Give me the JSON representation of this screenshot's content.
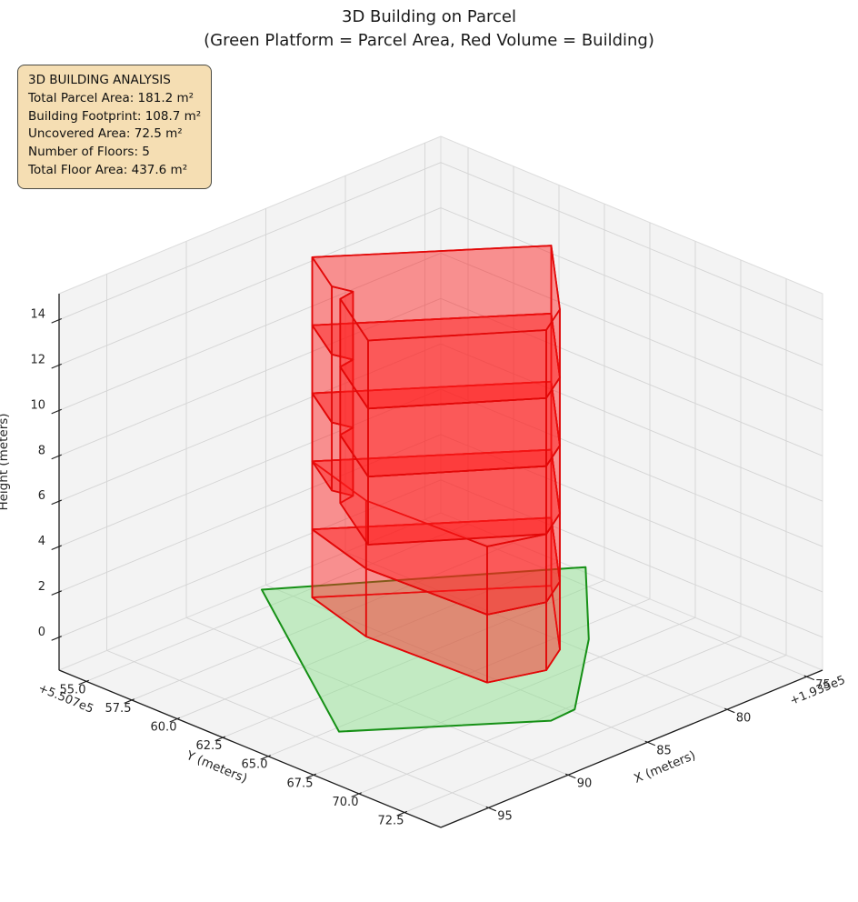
{
  "title": {
    "line1": "3D Building on Parcel",
    "line2": "(Green Platform = Parcel Area, Red Volume = Building)"
  },
  "info_box": {
    "title": "3D BUILDING ANALYSIS",
    "lines": [
      "Total Parcel Area: 181.2 m²",
      "Building Footprint: 108.7 m²",
      "Uncovered Area: 72.5 m²",
      "Number of Floors: 5",
      "Total Floor Area: 437.6 m²"
    ],
    "bg_color": "#f5deb3",
    "border_color": "#4a4a42"
  },
  "chart_data": {
    "type": "3d-extruded-polygon-plot",
    "title": "3D Building on Parcel",
    "subtitle": "(Green Platform = Parcel Area, Red Volume = Building)",
    "axes": {
      "x": {
        "label": "X (meters)",
        "lim": [
          74,
          98
        ],
        "ticks": [
          75,
          80,
          85,
          90,
          95
        ],
        "ticklabels": [
          "75",
          "80",
          "85",
          "90",
          "95"
        ],
        "offset_text": "+1.935e5"
      },
      "y": {
        "label": "Y (meters)",
        "lim": [
          53.5,
          74.5
        ],
        "ticks": [
          55.0,
          57.5,
          60.0,
          62.5,
          65.0,
          67.5,
          70.0,
          72.5
        ],
        "ticklabels": [
          "55.0",
          "57.5",
          "60.0",
          "62.5",
          "65.0",
          "67.5",
          "70.0",
          "72.5"
        ],
        "offset_text": "+5.507e5"
      },
      "z": {
        "label": "Height (meters)",
        "lim": [
          -1.45,
          15.15
        ],
        "ticks": [
          0,
          2,
          4,
          6,
          8,
          10,
          12,
          14
        ],
        "ticklabels": [
          "0",
          "2",
          "4",
          "6",
          "8",
          "10",
          "12",
          "14"
        ],
        "offset_text": ""
      }
    },
    "parcel": {
      "z": 0,
      "polygon_xy": [
        [
          88.0,
          55.9
        ],
        [
          76.1,
          63.3
        ],
        [
          81.5,
          68.2
        ],
        [
          87.3,
          72.5
        ],
        [
          88.9,
          72.6
        ],
        [
          96.4,
          67.5
        ]
      ],
      "area_m2": 181.2,
      "fill": "rgba(146,226,146,0.5)",
      "edge": "#169016"
    },
    "building": {
      "n_floors": 5,
      "floor_height_m": 3,
      "footprint_area_m2": 108.7,
      "total_floor_area_m2": 437.6,
      "fill": "rgba(255,28,28,0.27)",
      "edge": "#e20808",
      "sections": [
        {
          "name": "base",
          "z0": 0,
          "z1": 6,
          "floors": 2,
          "footprint": [
            [
              87.0,
              57.8
            ],
            [
              78.6,
              63.6
            ],
            [
              83.2,
              68.1
            ],
            [
              85.2,
              69.1
            ],
            [
              88.0,
              68.3
            ],
            [
              88.3,
              61.9
            ]
          ]
        },
        {
          "name": "tower",
          "z0": 6,
          "z1": 15,
          "floors": 3,
          "footprint": [
            [
              87.0,
              57.8
            ],
            [
              78.6,
              63.6
            ],
            [
              83.2,
              68.1
            ],
            [
              85.2,
              69.1
            ],
            [
              91.6,
              64.9
            ],
            [
              89.3,
              61.35
            ],
            [
              88.34,
              61.22
            ],
            [
              88.61,
              60.29
            ]
          ]
        }
      ]
    },
    "style": {
      "pane_fill": "#f3f3f3",
      "pane_edge": "#dcdcdc",
      "grid_color": "#d4d4d4",
      "spine_color": "#1c1c1c",
      "tick_text_color": "#262626",
      "background": "#ffffff"
    }
  }
}
